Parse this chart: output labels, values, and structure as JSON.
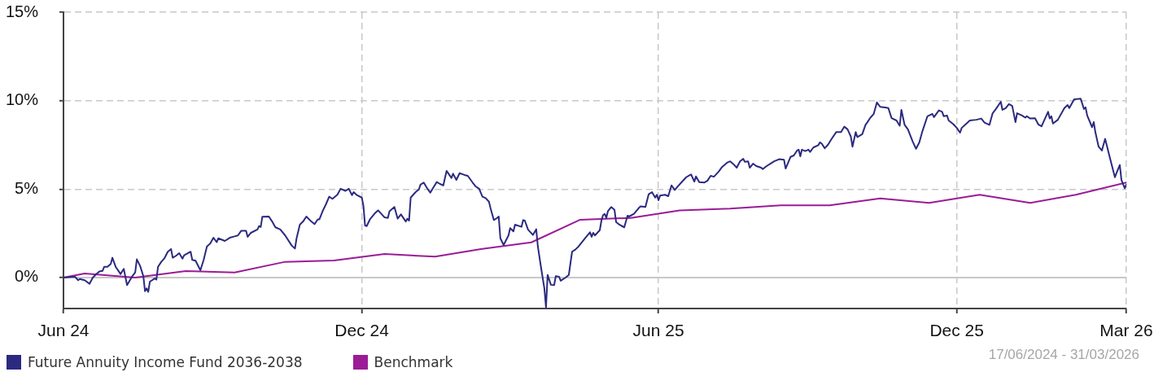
{
  "chart_data": {
    "type": "line",
    "xlim": [
      "2024-06-17",
      "2026-03-31"
    ],
    "xticks": [
      {
        "value": "2024-06-17",
        "label": "Jun 24"
      },
      {
        "value": "2024-12-17",
        "label": "Dec 24"
      },
      {
        "value": "2025-06-17",
        "label": "Jun 25"
      },
      {
        "value": "2025-12-17",
        "label": "Dec 25"
      },
      {
        "value": "2026-03-31",
        "label": "Mar 26"
      }
    ],
    "ylim": [
      -1.75,
      15
    ],
    "yticks": [
      {
        "value": 0,
        "label": "0%"
      },
      {
        "value": 5,
        "label": "5%"
      },
      {
        "value": 10,
        "label": "10%"
      },
      {
        "value": 15,
        "label": "15%"
      }
    ],
    "grid": true,
    "legend": "bottom left",
    "marker": "none",
    "line_style": "solid",
    "ref_lines": [
      {
        "axis": "y",
        "value": 0,
        "color": "#c8c8c8",
        "line_style": "solid"
      }
    ],
    "annotations": [
      "17/06/2024 - 31/03/2026"
    ],
    "series": [
      {
        "name": "Future Annuity Income Fund 2036-2038",
        "color": "#2b2a80",
        "x": [
          "2024-06-17",
          "2024-06-24",
          "2024-06-26",
          "2024-06-27",
          "2024-06-30",
          "2024-07-03",
          "2024-07-05",
          "2024-07-07",
          "2024-07-09",
          "2024-07-11",
          "2024-07-12",
          "2024-07-14",
          "2024-07-16",
          "2024-07-17",
          "2024-07-19",
          "2024-07-21",
          "2024-07-22",
          "2024-07-24",
          "2024-07-26",
          "2024-07-29",
          "2024-07-31",
          "2024-08-01",
          "2024-08-03",
          "2024-08-05",
          "2024-08-06",
          "2024-08-07",
          "2024-08-08",
          "2024-08-09",
          "2024-08-12",
          "2024-08-13",
          "2024-08-14",
          "2024-08-16",
          "2024-08-18",
          "2024-08-20",
          "2024-08-22",
          "2024-08-23",
          "2024-08-25",
          "2024-08-27",
          "2024-08-29",
          "2024-08-30",
          "2024-09-03",
          "2024-09-04",
          "2024-09-06",
          "2024-09-09",
          "2024-09-11",
          "2024-09-13",
          "2024-09-15",
          "2024-09-17",
          "2024-09-19",
          "2024-09-20",
          "2024-09-24",
          "2024-09-27",
          "2024-09-30",
          "2024-10-02",
          "2024-10-04",
          "2024-10-07",
          "2024-10-08",
          "2024-10-10",
          "2024-10-14",
          "2024-10-15",
          "2024-10-16",
          "2024-10-17",
          "2024-10-21",
          "2024-10-23",
          "2024-10-25",
          "2024-10-28",
          "2024-10-31",
          "2024-11-04",
          "2024-11-06",
          "2024-11-07",
          "2024-11-09",
          "2024-11-11",
          "2024-11-13",
          "2024-11-16",
          "2024-11-18",
          "2024-11-20",
          "2024-11-21",
          "2024-11-23",
          "2024-11-25",
          "2024-11-27",
          "2024-11-29",
          "2024-12-02",
          "2024-12-04",
          "2024-12-07",
          "2024-12-09",
          "2024-12-11",
          "2024-12-12",
          "2024-12-14",
          "2024-12-17",
          "2024-12-18",
          "2024-12-19",
          "2024-12-20",
          "2024-12-22",
          "2024-12-25",
          "2024-12-27",
          "2024-12-31",
          "2025-01-02",
          "2025-01-03",
          "2025-01-06",
          "2025-01-08",
          "2025-01-10",
          "2025-01-13",
          "2025-01-14",
          "2025-01-15",
          "2025-01-16",
          "2025-01-19",
          "2025-01-21",
          "2025-01-22",
          "2025-01-24",
          "2025-01-26",
          "2025-01-28",
          "2025-01-30",
          "2025-02-01",
          "2025-02-03",
          "2025-02-05",
          "2025-02-07",
          "2025-02-10",
          "2025-02-11",
          "2025-02-13",
          "2025-02-15",
          "2025-02-18",
          "2025-02-20",
          "2025-02-23",
          "2025-02-25",
          "2025-02-27",
          "2025-03-01",
          "2025-03-03",
          "2025-03-05",
          "2025-03-06",
          "2025-03-08",
          "2025-03-10",
          "2025-03-11",
          "2025-03-12",
          "2025-03-14",
          "2025-03-17",
          "2025-03-18",
          "2025-03-20",
          "2025-03-21",
          "2025-03-25",
          "2025-03-26",
          "2025-03-27",
          "2025-03-29",
          "2025-04-01",
          "2025-04-03",
          "2025-04-04",
          "2025-04-06",
          "2025-04-08",
          "2025-04-09",
          "2025-04-10",
          "2025-04-12",
          "2025-04-14",
          "2025-04-15",
          "2025-04-17",
          "2025-04-18",
          "2025-04-21",
          "2025-04-23",
          "2025-04-25",
          "2025-04-27",
          "2025-04-29",
          "2025-05-01",
          "2025-05-03",
          "2025-05-06",
          "2025-05-07",
          "2025-05-08",
          "2025-05-09",
          "2025-05-12",
          "2025-05-13",
          "2025-05-14",
          "2025-05-15",
          "2025-05-16",
          "2025-05-17",
          "2025-05-19",
          "2025-05-21",
          "2025-05-22",
          "2025-05-24",
          "2025-05-27",
          "2025-05-29",
          "2025-05-30",
          "2025-06-02",
          "2025-06-05",
          "2025-06-06",
          "2025-06-09",
          "2025-06-11",
          "2025-06-13",
          "2025-06-15",
          "2025-06-16",
          "2025-06-17",
          "2025-06-18",
          "2025-06-21",
          "2025-06-23",
          "2025-06-25",
          "2025-06-27",
          "2025-06-29",
          "2025-07-01",
          "2025-07-04",
          "2025-07-06",
          "2025-07-07",
          "2025-07-09",
          "2025-07-10",
          "2025-07-12",
          "2025-07-15",
          "2025-07-17",
          "2025-07-19",
          "2025-07-21",
          "2025-07-24",
          "2025-07-26",
          "2025-07-29",
          "2025-07-31",
          "2025-08-02",
          "2025-08-04",
          "2025-08-06",
          "2025-08-08",
          "2025-08-09",
          "2025-08-11",
          "2025-08-12",
          "2025-08-14",
          "2025-08-16",
          "2025-08-19",
          "2025-08-20",
          "2025-08-22",
          "2025-08-25",
          "2025-08-27",
          "2025-08-30",
          "2025-09-02",
          "2025-09-03",
          "2025-09-06",
          "2025-09-08",
          "2025-09-10",
          "2025-09-11",
          "2025-09-12",
          "2025-09-13",
          "2025-09-15",
          "2025-09-17",
          "2025-09-18",
          "2025-09-20",
          "2025-09-23",
          "2025-09-24",
          "2025-09-25",
          "2025-09-27",
          "2025-09-29",
          "2025-10-01",
          "2025-10-04",
          "2025-10-07",
          "2025-10-09",
          "2025-10-11",
          "2025-10-13",
          "2025-10-14",
          "2025-10-16",
          "2025-10-17",
          "2025-10-20",
          "2025-10-22",
          "2025-10-23",
          "2025-10-25",
          "2025-10-27",
          "2025-10-29",
          "2025-10-31",
          "2025-11-03",
          "2025-11-05",
          "2025-11-07",
          "2025-11-10",
          "2025-11-12",
          "2025-11-13",
          "2025-11-15",
          "2025-11-17",
          "2025-11-20",
          "2025-11-22",
          "2025-11-24",
          "2025-11-26",
          "2025-11-29",
          "2025-12-02",
          "2025-12-03",
          "2025-12-06",
          "2025-12-08",
          "2025-12-09",
          "2025-12-11",
          "2025-12-12",
          "2025-12-15",
          "2025-12-17",
          "2025-12-19",
          "2025-12-20",
          "2025-12-22",
          "2025-12-25",
          "2025-12-29",
          "2026-01-01",
          "2026-01-03",
          "2026-01-06",
          "2026-01-08",
          "2026-01-10",
          "2026-01-13",
          "2026-01-14",
          "2026-01-16",
          "2026-01-18",
          "2026-01-20",
          "2026-01-22",
          "2026-01-23",
          "2026-01-26",
          "2026-01-28",
          "2026-01-29",
          "2026-01-31",
          "2026-02-03",
          "2026-02-05",
          "2026-02-07",
          "2026-02-08",
          "2026-02-11",
          "2026-02-12",
          "2026-02-13",
          "2026-02-14",
          "2026-02-17",
          "2026-02-21",
          "2026-02-23",
          "2026-02-24",
          "2026-02-27",
          "2026-03-03",
          "2026-03-05",
          "2026-03-06",
          "2026-03-07",
          "2026-03-10",
          "2026-03-11",
          "2026-03-12",
          "2026-03-14",
          "2026-03-16",
          "2026-03-18",
          "2026-03-21",
          "2026-03-24",
          "2026-03-25",
          "2026-03-27",
          "2026-03-28",
          "2026-03-30",
          "2026-03-31"
        ],
        "values": [
          0,
          0.05,
          -0.15,
          -0.08,
          -0.15,
          -0.35,
          0,
          0.18,
          0.34,
          0.38,
          0.61,
          0.61,
          0.77,
          1.12,
          0.61,
          0.34,
          0.2,
          0.49,
          -0.43,
          0.05,
          0.29,
          1.03,
          0.66,
          0.08,
          -0.77,
          -0.61,
          -0.81,
          -0.23,
          -0.05,
          -0.11,
          0.61,
          0.89,
          1.1,
          1.46,
          1.61,
          1.12,
          1.23,
          1.38,
          1.07,
          1.26,
          1.46,
          1.0,
          0.95,
          0.41,
          1.0,
          1.76,
          1.92,
          2.25,
          2.0,
          2.22,
          2.07,
          2.25,
          2.33,
          2.38,
          2.64,
          2.64,
          2.3,
          2.53,
          2.72,
          2.91,
          2.86,
          3.44,
          3.45,
          3.17,
          2.84,
          2.72,
          2.38,
          1.81,
          1.64,
          2.22,
          2.99,
          3.17,
          3.45,
          3.17,
          3.02,
          3.29,
          3.29,
          3.76,
          4.14,
          4.57,
          4.45,
          4.68,
          5.02,
          4.9,
          5.02,
          4.66,
          4.83,
          4.66,
          4.52,
          4.06,
          2.94,
          2.91,
          3.29,
          3.63,
          3.8,
          3.4,
          3.37,
          3.75,
          3.99,
          3.33,
          3.57,
          3.17,
          3.33,
          3.22,
          4.52,
          4.83,
          4.98,
          5.25,
          5.37,
          5.06,
          4.8,
          5.11,
          5.4,
          5.29,
          5.21,
          6.03,
          5.63,
          5.87,
          5.52,
          5.9,
          5.8,
          5.75,
          5.37,
          5.14,
          5.02,
          4.57,
          4.49,
          4.29,
          3.91,
          3.25,
          3.37,
          3.45,
          2.22,
          1.84,
          2.38,
          2.79,
          2.61,
          2.99,
          2.87,
          3.25,
          3.22,
          2.71,
          2.41,
          2.73,
          1.76,
          0.54,
          -0.61,
          -1.69,
          0.15,
          -0.41,
          -0.43,
          0.08,
          0.05,
          -0.18,
          0,
          0.15,
          1.46,
          1.58,
          1.76,
          1.99,
          2.22,
          2.56,
          2.3,
          2.53,
          2.38,
          2.68,
          3.22,
          3.53,
          3.6,
          3.37,
          3.76,
          3.99,
          3.83,
          3.14,
          2.99,
          2.84,
          3.5,
          3.45,
          3.6,
          3.94,
          4.02,
          3.99,
          4.71,
          4.83,
          4.52,
          4.68,
          4.37,
          4.63,
          4.68,
          4.6,
          5.21,
          4.95,
          5.17,
          5.37,
          5.67,
          5.78,
          5.83,
          5.42,
          5.72,
          5.39,
          5.37,
          5.47,
          5.75,
          5.7,
          6.0,
          6.25,
          6.49,
          6.57,
          6.41,
          6.21,
          6.57,
          6.71,
          6.54,
          6.57,
          6.21,
          6.44,
          6.3,
          6.21,
          6.13,
          6.28,
          6.46,
          6.57,
          6.69,
          6.66,
          6.16,
          6.82,
          6.9,
          7.18,
          7.23,
          6.85,
          7.23,
          7.15,
          7.23,
          7.1,
          7.35,
          7.48,
          7.64,
          7.59,
          7.31,
          7.51,
          7.81,
          8.22,
          8.22,
          8.53,
          8.38,
          7.97,
          7.4,
          8.22,
          7.94,
          8.1,
          8.63,
          8.76,
          9.04,
          9.24,
          9.9,
          9.65,
          9.62,
          9.58,
          9.01,
          8.88,
          8.58,
          9.48,
          8.63,
          8.38,
          7.68,
          7.28,
          7.64,
          8.3,
          9.12,
          9.25,
          9.07,
          9.45,
          9.37,
          9.12,
          9.16,
          8.88,
          8.66,
          8.46,
          8.19,
          8.46,
          8.63,
          8.88,
          8.92,
          8.99,
          8.76,
          8.63,
          9.29,
          9.53,
          9.94,
          9.48,
          9.58,
          9.81,
          9.7,
          8.79,
          9.29,
          9.16,
          9.04,
          9.12,
          8.99,
          9.01,
          8.66,
          8.55,
          8.76,
          9.37,
          8.99,
          9.12,
          8.71,
          8.92,
          9.58,
          9.75,
          9.58,
          10.08,
          10.11,
          9.53,
          9.62,
          9.16,
          8.5,
          8.79,
          8.22,
          7.4,
          7.18,
          7.84,
          6.74,
          5.67,
          5.92,
          6.36,
          5.51,
          5.05,
          5.26
        ]
      },
      {
        "name": "Benchmark",
        "color": "#9b1c96",
        "x": [
          "2024-06-17",
          "2024-06-30",
          "2024-07-31",
          "2024-08-31",
          "2024-09-30",
          "2024-10-31",
          "2024-11-30",
          "2024-12-31",
          "2025-01-31",
          "2025-02-28",
          "2025-03-31",
          "2025-04-30",
          "2025-05-31",
          "2025-06-30",
          "2025-07-31",
          "2025-08-31",
          "2025-09-30",
          "2025-10-31",
          "2025-11-30",
          "2025-12-31",
          "2026-01-31",
          "2026-02-28",
          "2026-03-31"
        ],
        "values": [
          0,
          0.23,
          0,
          0.37,
          0.29,
          0.89,
          0.97,
          1.33,
          1.18,
          1.61,
          1.99,
          3.27,
          3.37,
          3.79,
          3.9,
          4.08,
          4.08,
          4.47,
          4.22,
          4.68,
          4.22,
          4.68,
          5.37
        ]
      }
    ]
  }
}
